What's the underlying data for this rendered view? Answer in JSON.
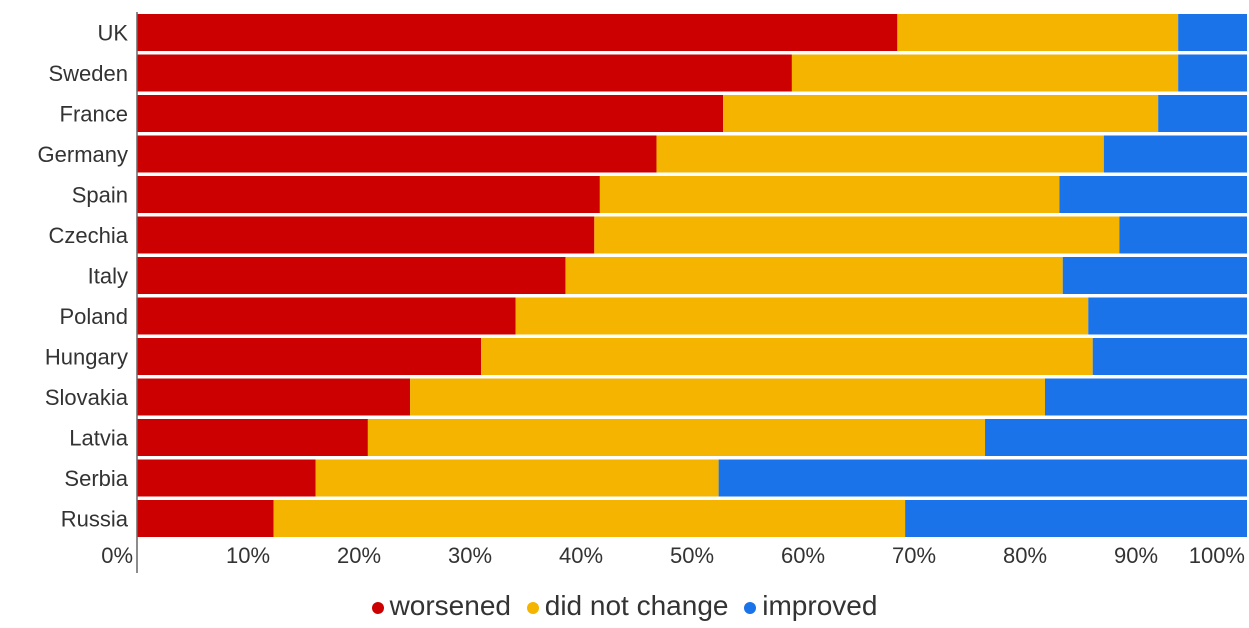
{
  "chart_data": {
    "type": "bar",
    "orientation": "horizontal",
    "stacked": true,
    "categories": [
      "UK",
      "Sweden",
      "France",
      "Germany",
      "Spain",
      "Czechia",
      "Italy",
      "Poland",
      "Hungary",
      "Slovakia",
      "Latvia",
      "Serbia",
      "Russia"
    ],
    "series": [
      {
        "name": "worsened",
        "color": "#cc0000",
        "values": [
          68.5,
          59,
          52.8,
          46.8,
          41.7,
          41.2,
          38.6,
          34.1,
          31,
          24.6,
          20.8,
          16.1,
          12.3
        ]
      },
      {
        "name": "did not change",
        "color": "#f4b400",
        "values": [
          25.3,
          34.8,
          39.2,
          40.3,
          41.4,
          47.3,
          44.8,
          51.6,
          55.1,
          57.2,
          55.6,
          36.3,
          56.9
        ]
      },
      {
        "name": "improved",
        "color": "#1a73e8",
        "values": [
          6.2,
          6.2,
          8,
          12.9,
          16.9,
          11.5,
          16.6,
          14.3,
          13.9,
          18.2,
          23.6,
          47.6,
          30.8
        ]
      }
    ],
    "xticks": [
      "0%",
      "10%",
      "20%",
      "30%",
      "40%",
      "50%",
      "60%",
      "70%",
      "80%",
      "90%",
      "100%"
    ],
    "xlim": [
      0,
      100
    ],
    "grid": false,
    "legend_position": "bottom"
  }
}
